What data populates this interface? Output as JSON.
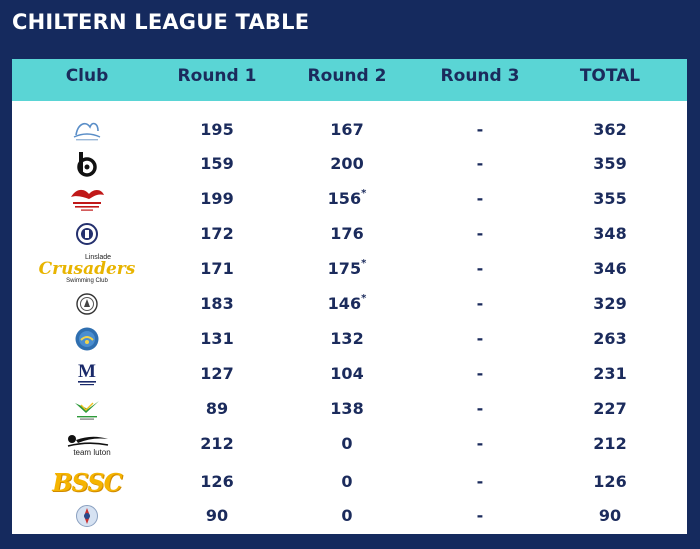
{
  "title": "CHILTERN LEAGUE TABLE",
  "header": {
    "club": "Club",
    "round1": "Round 1",
    "round2": "Round 2",
    "round3": "Round 3",
    "total": "TOTAL"
  },
  "rows": [
    {
      "logo": "swimming-club-logo-1",
      "round1": "195",
      "round2": "167",
      "round2_star": "",
      "round3": "-",
      "total": "362"
    },
    {
      "logo": "bd-logo",
      "round1": "159",
      "round2": "200",
      "round2_star": "",
      "round3": "-",
      "total": "359"
    },
    {
      "logo": "red-bird-logo",
      "logo_text": "LEIGHTON BUZZARD SWIMMING CLUB",
      "round1": "199",
      "round2": "156",
      "round2_star": "*",
      "round3": "-",
      "total": "355"
    },
    {
      "logo": "round-crest-logo",
      "round1": "172",
      "round2": "176",
      "round2_star": "",
      "round3": "-",
      "total": "348"
    },
    {
      "logo": "crusaders-logo",
      "logo_top": "Linslade",
      "logo_main": "Crusaders",
      "logo_bottom": "Swimming Club",
      "round1": "171",
      "round2": "175",
      "round2_star": "*",
      "round3": "-",
      "total": "346"
    },
    {
      "logo": "circle-badge-logo",
      "round1": "183",
      "round2": "146",
      "round2_star": "*",
      "round3": "-",
      "total": "329"
    },
    {
      "logo": "blue-roundel-logo",
      "round1": "131",
      "round2": "132",
      "round2_star": "",
      "round3": "-",
      "total": "263"
    },
    {
      "logo": "m-logo",
      "logo_letter": "M",
      "round1": "127",
      "round2": "104",
      "round2_star": "",
      "round3": "-",
      "total": "231"
    },
    {
      "logo": "green-wing-logo",
      "round1": "89",
      "round2": "138",
      "round2_star": "",
      "round3": "-",
      "total": "227"
    },
    {
      "logo": "team-luton-logo",
      "logo_text": "team luton",
      "round1": "212",
      "round2": "0",
      "round2_star": "",
      "round3": "-",
      "total": "212"
    },
    {
      "logo": "bssc-logo",
      "logo_text": "BSSC",
      "round1": "126",
      "round2": "0",
      "round2_star": "",
      "round3": "-",
      "total": "126"
    },
    {
      "logo": "small-roundel-logo",
      "round1": "90",
      "round2": "0",
      "round2_star": "",
      "round3": "-",
      "total": "90"
    }
  ],
  "colors": {
    "background": "#152a5e",
    "header": "#5ad5d5",
    "text": "#1b2b5c"
  }
}
